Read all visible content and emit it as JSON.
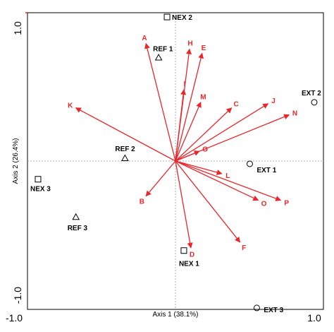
{
  "chart_data": {
    "type": "biplot",
    "xlabel": "Axis 1 (38.1%)",
    "ylabel": "Axis 2 (26.4%)",
    "xlim": [
      -1.0,
      1.0
    ],
    "ylim": [
      -1.0,
      1.0
    ],
    "x_tick_labels": [
      "-1.0",
      "1.0"
    ],
    "y_tick_labels": [
      "-1.0",
      "1.0"
    ],
    "colors": {
      "vectors": "#e8262b",
      "sites": "#000000",
      "frame": "#000000"
    },
    "vectors": [
      {
        "label": "A",
        "x": -0.21,
        "y": 0.84
      },
      {
        "label": "H",
        "x": 0.1,
        "y": 0.8
      },
      {
        "label": "E",
        "x": 0.19,
        "y": 0.77
      },
      {
        "label": "I",
        "x": 0.06,
        "y": 0.51
      },
      {
        "label": "M",
        "x": 0.18,
        "y": 0.42
      },
      {
        "label": "C",
        "x": 0.4,
        "y": 0.38
      },
      {
        "label": "J",
        "x": 0.66,
        "y": 0.41
      },
      {
        "label": "N",
        "x": 0.81,
        "y": 0.33
      },
      {
        "label": "K",
        "x": -0.71,
        "y": 0.38
      },
      {
        "label": "G",
        "x": 0.17,
        "y": 0.07
      },
      {
        "label": "L",
        "x": 0.33,
        "y": -0.09
      },
      {
        "label": "B",
        "x": -0.21,
        "y": -0.25
      },
      {
        "label": "O",
        "x": 0.59,
        "y": -0.28
      },
      {
        "label": "P",
        "x": 0.75,
        "y": -0.28
      },
      {
        "label": "D",
        "x": 0.11,
        "y": -0.62
      },
      {
        "label": "F",
        "x": 0.46,
        "y": -0.58
      }
    ],
    "sites": [
      {
        "label": "NEX 2",
        "marker": "square",
        "x": -0.06,
        "y": 1.03
      },
      {
        "label": "REF 1",
        "marker": "triangle",
        "x": -0.12,
        "y": 0.74
      },
      {
        "label": "EXT 2",
        "marker": "circle",
        "x": 0.99,
        "y": 0.42
      },
      {
        "label": "REF 2",
        "marker": "triangle",
        "x": -0.36,
        "y": 0.02
      },
      {
        "label": "EXT 1",
        "marker": "circle",
        "x": 0.53,
        "y": -0.02
      },
      {
        "label": "NEX 3",
        "marker": "square",
        "x": -0.98,
        "y": -0.13
      },
      {
        "label": "REF 3",
        "marker": "triangle",
        "x": -0.71,
        "y": -0.4
      },
      {
        "label": "NEX 1",
        "marker": "square",
        "x": 0.06,
        "y": -0.64
      },
      {
        "label": "EXT 3",
        "marker": "circle",
        "x": 0.58,
        "y": -1.05
      }
    ]
  }
}
